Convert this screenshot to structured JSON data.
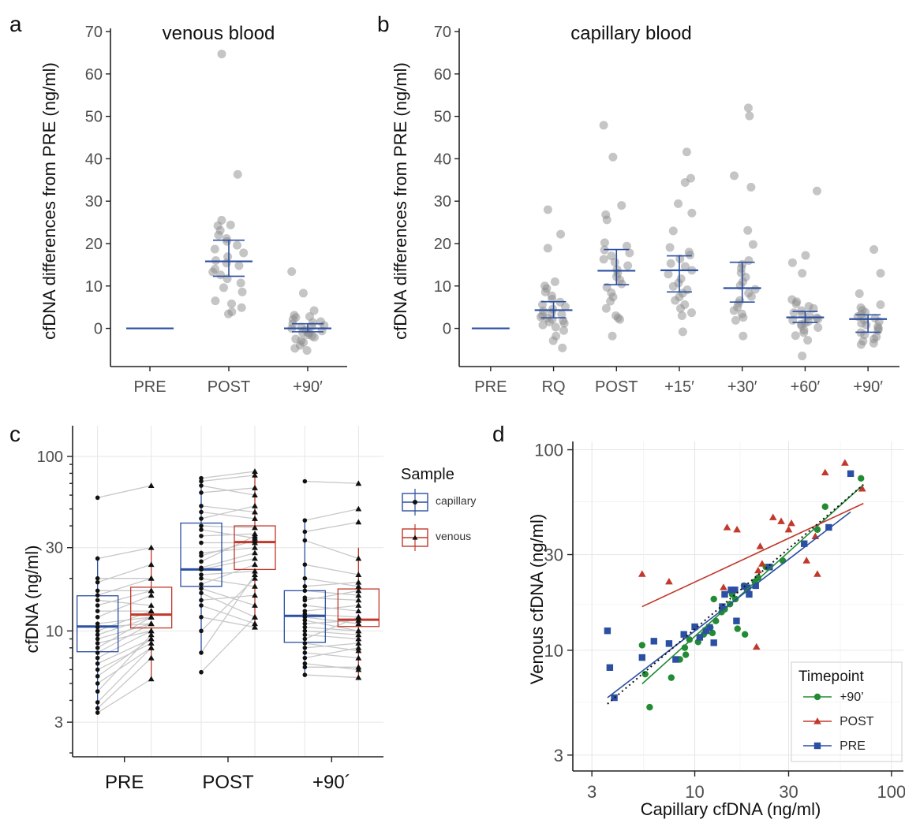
{
  "panels": [
    {
      "id": "a",
      "label": "a",
      "type": "scatter",
      "title": "venous blood",
      "ylabel": "cfDNA differences from PRE (ng/ml)",
      "categories": [
        "PRE",
        "POST",
        "+90′"
      ],
      "yticks": [
        0,
        10,
        20,
        30,
        40,
        50,
        60,
        70
      ],
      "ylim": [
        -9,
        70
      ],
      "points": [
        [],
        [
          64.7,
          36.3,
          25.5,
          24.4,
          24.2,
          23.1,
          22.0,
          21.2,
          20.5,
          19.6,
          18.7,
          17.8,
          16.9,
          16.0,
          15.4,
          14.8,
          14.0,
          13.3,
          12.6,
          11.7,
          10.7,
          9.6,
          8.6,
          6.5,
          5.8,
          4.9,
          3.9,
          3.4
        ],
        [
          13.4,
          8.3,
          4.2,
          3.1,
          2.6,
          2.1,
          1.6,
          1.1,
          0.7,
          0.3,
          0.0,
          -0.3,
          -0.6,
          -0.9,
          -1.2,
          -1.5,
          -1.8,
          -2.1,
          -2.5,
          -2.9,
          -3.3,
          -4.0,
          -4.7,
          -5.2,
          2.8,
          0.5,
          -1.0,
          1.4
        ]
      ],
      "summary": [
        {
          "mid": 0,
          "lo": 0,
          "hi": 0
        },
        {
          "mid": 15.8,
          "lo": 12.3,
          "hi": 20.8
        },
        {
          "mid": 0.0,
          "lo": -0.8,
          "hi": 1.1
        }
      ]
    },
    {
      "id": "b",
      "label": "b",
      "type": "scatter",
      "title": "capillary blood",
      "ylabel": "cfDNA differences from PRE (ng/ml)",
      "categories": [
        "PRE",
        "RQ",
        "POST",
        "+15′",
        "+30′",
        "+60′",
        "+90′"
      ],
      "yticks": [
        0,
        10,
        20,
        30,
        40,
        50,
        60,
        70
      ],
      "ylim": [
        -9,
        70
      ],
      "points": [
        [],
        [
          28.0,
          22.2,
          18.9,
          11.0,
          10.0,
          9.4,
          8.6,
          7.7,
          6.9,
          6.2,
          5.6,
          5.1,
          4.6,
          4.1,
          3.7,
          3.3,
          3.0,
          2.7,
          2.4,
          2.1,
          1.8,
          1.5,
          1.2,
          0.8,
          0.3,
          -0.5,
          -1.8,
          -2.9,
          -4.6
        ],
        [
          47.9,
          40.4,
          29.0,
          26.8,
          25.6,
          20.2,
          19.4,
          18.5,
          17.8,
          17.1,
          16.3,
          15.6,
          14.8,
          13.9,
          13.0,
          12.2,
          11.4,
          10.5,
          9.7,
          8.4,
          7.4,
          6.4,
          4.7,
          3.0,
          2.5,
          2.1,
          -1.8
        ],
        [
          41.6,
          35.4,
          34.4,
          29.4,
          27.2,
          23.0,
          19.1,
          18.0,
          17.3,
          16.4,
          15.3,
          14.6,
          13.7,
          12.8,
          11.7,
          10.7,
          9.9,
          9.1,
          8.3,
          7.4,
          6.6,
          5.6,
          4.7,
          3.7,
          3.0,
          -0.8
        ],
        [
          52.0,
          50.1,
          36.0,
          33.3,
          23.1,
          19.8,
          16.0,
          15.1,
          14.2,
          13.1,
          12.1,
          11.0,
          10.1,
          9.2,
          8.3,
          7.5,
          6.6,
          5.9,
          5.0,
          4.2,
          3.4,
          2.6,
          1.9,
          -1.8
        ],
        [
          32.4,
          17.2,
          15.5,
          13.0,
          6.8,
          6.3,
          5.8,
          5.2,
          4.7,
          4.2,
          3.7,
          3.3,
          2.9,
          2.5,
          2.2,
          1.9,
          1.6,
          1.3,
          1.0,
          0.6,
          0.2,
          -0.4,
          -1.0,
          -1.7,
          -2.8,
          -6.5
        ],
        [
          18.6,
          13.0,
          8.2,
          5.6,
          4.9,
          4.3,
          3.8,
          3.3,
          2.8,
          2.4,
          2.0,
          1.6,
          1.2,
          0.8,
          0.4,
          0.0,
          -0.5,
          -1.0,
          -1.5,
          -2.0,
          -2.5,
          -3.0,
          -3.5,
          -3.8
        ]
      ],
      "summary": [
        {
          "mid": 0,
          "lo": 0,
          "hi": 0
        },
        {
          "mid": 4.3,
          "lo": 2.5,
          "hi": 6.3
        },
        {
          "mid": 13.6,
          "lo": 10.3,
          "hi": 18.6
        },
        {
          "mid": 13.7,
          "lo": 8.6,
          "hi": 17.1
        },
        {
          "mid": 9.5,
          "lo": 6.2,
          "hi": 15.6
        },
        {
          "mid": 2.6,
          "lo": 1.4,
          "hi": 4.0
        },
        {
          "mid": 2.2,
          "lo": -0.9,
          "hi": 3.2
        }
      ]
    },
    {
      "id": "c",
      "label": "c",
      "type": "box",
      "ylabel": "cfDNA (ng/ml)",
      "yscale": "log",
      "categories": [
        "PRE",
        "POST",
        "+90´"
      ],
      "yticks": [
        3,
        10,
        30,
        100
      ],
      "ylim": [
        1.9,
        150
      ],
      "legend": {
        "title": "Sample",
        "items": [
          {
            "name": "capillary",
            "color": "#2b4fa2",
            "marker": "circle"
          },
          {
            "name": "venous",
            "color": "#c0392b",
            "marker": "triangle"
          }
        ]
      },
      "boxes": [
        {
          "group": "PRE",
          "sample": "capillary",
          "q1": 7.6,
          "median": 10.6,
          "q3": 15.9,
          "whisker_lo": 3.5,
          "whisker_hi": 25.8
        },
        {
          "group": "PRE",
          "sample": "venous",
          "q1": 10.4,
          "median": 12.4,
          "q3": 17.8,
          "whisker_lo": 5.3,
          "whisker_hi": 30.8
        },
        {
          "group": "POST",
          "sample": "capillary",
          "q1": 18.0,
          "median": 22.5,
          "q3": 41.5,
          "whisker_lo": 7.5,
          "whisker_hi": 75.0
        },
        {
          "group": "POST",
          "sample": "venous",
          "q1": 22.5,
          "median": 32.3,
          "q3": 40.0,
          "whisker_lo": 10.3,
          "whisker_hi": 82.0
        },
        {
          "group": "+90´",
          "sample": "capillary",
          "q1": 8.6,
          "median": 12.2,
          "q3": 17.0,
          "whisker_lo": 5.6,
          "whisker_hi": 42.8
        },
        {
          "group": "+90´",
          "sample": "venous",
          "q1": 10.6,
          "median": 11.6,
          "q3": 17.4,
          "whisker_lo": 5.4,
          "whisker_hi": 30.0
        }
      ],
      "pairs": [
        [
          [
            58,
            68
          ],
          [
            26,
            30
          ],
          [
            20,
            20
          ],
          [
            19,
            24
          ],
          [
            17,
            17
          ],
          [
            16,
            20
          ],
          [
            15,
            14
          ],
          [
            14,
            17
          ],
          [
            13,
            13
          ],
          [
            12,
            16
          ],
          [
            11,
            12
          ],
          [
            10.5,
            11
          ],
          [
            10,
            13
          ],
          [
            9.5,
            12
          ],
          [
            9,
            11
          ],
          [
            8.5,
            10
          ],
          [
            8,
            12
          ],
          [
            7.5,
            11
          ],
          [
            7,
            10
          ],
          [
            6.5,
            9
          ],
          [
            6,
            8.5
          ],
          [
            5.5,
            9
          ],
          [
            5,
            8
          ],
          [
            4.5,
            9.5
          ],
          [
            3.9,
            8
          ],
          [
            3.6,
            7
          ],
          [
            3.4,
            5.3
          ]
        ],
        [
          [
            75,
            82
          ],
          [
            72,
            78
          ],
          [
            68,
            60
          ],
          [
            62,
            66
          ],
          [
            52,
            48
          ],
          [
            48,
            44
          ],
          [
            44,
            52
          ],
          [
            40,
            39
          ],
          [
            38,
            34
          ],
          [
            35,
            36
          ],
          [
            32,
            32
          ],
          [
            28,
            30
          ],
          [
            27,
            33
          ],
          [
            25,
            35
          ],
          [
            23,
            28
          ],
          [
            22.5,
            26
          ],
          [
            21,
            22
          ],
          [
            20,
            18
          ],
          [
            18.5,
            24
          ],
          [
            17.5,
            14
          ],
          [
            16.5,
            12
          ],
          [
            15,
            16
          ],
          [
            14,
            11
          ],
          [
            12,
            10.5
          ],
          [
            10,
            20
          ],
          [
            7.5,
            21
          ],
          [
            5.8,
            12
          ]
        ],
        [
          [
            72,
            70
          ],
          [
            43,
            50
          ],
          [
            37,
            42
          ],
          [
            33,
            26
          ],
          [
            24,
            21
          ],
          [
            20,
            18
          ],
          [
            18,
            19
          ],
          [
            17,
            16
          ],
          [
            15.5,
            15
          ],
          [
            15,
            17
          ],
          [
            14,
            13
          ],
          [
            13,
            14
          ],
          [
            12.5,
            12
          ],
          [
            12,
            11
          ],
          [
            11.5,
            10
          ],
          [
            11,
            11.5
          ],
          [
            10.5,
            10
          ],
          [
            10,
            9.5
          ],
          [
            9.5,
            9
          ],
          [
            9,
            12
          ],
          [
            8.5,
            7.7
          ],
          [
            8,
            8.5
          ],
          [
            7.5,
            7
          ],
          [
            7,
            8
          ],
          [
            6.5,
            6
          ],
          [
            6.2,
            6.2
          ],
          [
            5.6,
            5.4
          ]
        ]
      ]
    },
    {
      "id": "d",
      "label": "d",
      "type": "scatter",
      "xlabel": "Capillary cfDNA (ng/ml)",
      "ylabel": "Venous cfDNA (ng/ml)",
      "xscale": "log",
      "yscale": "log",
      "xticks": [
        3,
        10,
        30,
        100
      ],
      "yticks": [
        3,
        10,
        30,
        100
      ],
      "xlim": [
        2.4,
        115
      ],
      "ylim": [
        2.5,
        110
      ],
      "legend": {
        "title": "Timepoint",
        "position": "bottom-right"
      },
      "series": [
        {
          "name": "+90’",
          "color": "#228b34",
          "marker": "circle",
          "points": [
            [
              5.4,
              10.6
            ],
            [
              5.9,
              5.2
            ],
            [
              5.6,
              7.6
            ],
            [
              7.6,
              7.3
            ],
            [
              8.4,
              9.0
            ],
            [
              8.9,
              10.3
            ],
            [
              9.4,
              11.3
            ],
            [
              10.4,
              11.0
            ],
            [
              11.1,
              12.0
            ],
            [
              12.0,
              13.0
            ],
            [
              12.3,
              12.2
            ],
            [
              12.8,
              14.0
            ],
            [
              13.7,
              15.5
            ],
            [
              14.2,
              16.0
            ],
            [
              15.1,
              17.0
            ],
            [
              16.1,
              18.0
            ],
            [
              16.5,
              12.8
            ],
            [
              17.8,
              21.0
            ],
            [
              20.2,
              22.0
            ],
            [
              23.0,
              26.0
            ],
            [
              28.0,
              28.0
            ],
            [
              42.0,
              40.0
            ],
            [
              46.0,
              52.0
            ],
            [
              70.0,
              72.0
            ],
            [
              9.0,
              9.5
            ],
            [
              12.5,
              18.0
            ],
            [
              15.5,
              19.0
            ],
            [
              18.0,
              12.0
            ],
            [
              21.0,
              23.0
            ]
          ]
        },
        {
          "name": "POST",
          "color": "#c0392b",
          "marker": "triangle",
          "points": [
            [
              5.4,
              24.0
            ],
            [
              7.4,
              22.0
            ],
            [
              14.0,
              20.6
            ],
            [
              14.6,
              41.0
            ],
            [
              16.4,
              40.0
            ],
            [
              20.6,
              10.4
            ],
            [
              21.0,
              25.0
            ],
            [
              21.5,
              33.0
            ],
            [
              25.0,
              46.0
            ],
            [
              27.5,
              44.0
            ],
            [
              31.0,
              43.0
            ],
            [
              41.0,
              37.0
            ],
            [
              42.0,
              24.0
            ],
            [
              46.0,
              77.0
            ],
            [
              58.0,
              86.0
            ],
            [
              71.0,
              64.0
            ],
            [
              37.0,
              28.0
            ],
            [
              30.0,
              40.0
            ],
            [
              22.0,
              27.0
            ]
          ]
        },
        {
          "name": "PRE",
          "color": "#2b4fa2",
          "marker": "square",
          "points": [
            [
              3.6,
              12.5
            ],
            [
              3.7,
              8.2
            ],
            [
              3.9,
              5.8
            ],
            [
              5.4,
              9.2
            ],
            [
              6.2,
              11.1
            ],
            [
              7.4,
              10.8
            ],
            [
              8.0,
              9.0
            ],
            [
              8.8,
              12.0
            ],
            [
              10.0,
              13.1
            ],
            [
              10.6,
              11.6
            ],
            [
              11.4,
              12.5
            ],
            [
              11.9,
              13.0
            ],
            [
              12.5,
              10.9
            ],
            [
              13.8,
              16.5
            ],
            [
              14.2,
              19.0
            ],
            [
              15.3,
              20.0
            ],
            [
              16.3,
              14.0
            ],
            [
              17.9,
              20.8
            ],
            [
              18.9,
              19.0
            ],
            [
              20.4,
              21.0
            ],
            [
              24.0,
              26.0
            ],
            [
              36.0,
              34.0
            ],
            [
              48.0,
              41.0
            ],
            [
              62.0,
              76.0
            ],
            [
              16.0,
              20.0
            ],
            [
              18.5,
              20.5
            ]
          ]
        }
      ],
      "fits": [
        {
          "name": "+90’",
          "color": "#228b34",
          "from": [
            5.4,
            6.8
          ],
          "to": [
            72,
            67
          ]
        },
        {
          "name": "POST",
          "color": "#c0392b",
          "from": [
            5.4,
            16.5
          ],
          "to": [
            72,
            54
          ]
        },
        {
          "name": "PRE",
          "color": "#2b4fa2",
          "from": [
            3.6,
            5.8
          ],
          "to": [
            62,
            49
          ]
        },
        {
          "name": "identity",
          "color": "#111111",
          "dotted": true,
          "from": [
            3.6,
            5.4
          ],
          "to": [
            72,
            67
          ]
        }
      ]
    }
  ]
}
